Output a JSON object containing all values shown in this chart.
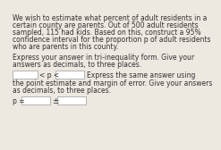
{
  "para1_lines": [
    "We wish to estimate what percent of adult residents in a",
    "certain county are parents. Out of 500 adult residents",
    "sampled, 115 had kids. Based on this, construct a 95%",
    "confidence interval for the proportion p of adult residents",
    "who are parents in this county."
  ],
  "para2_lines": [
    "Express your answer in tri-inequality form. Give your",
    "answers as decimals, to three places."
  ],
  "line3a": "Express the same answer using",
  "line3b": "the point estimate and margin of error. Give your answers",
  "line3c": "as decimals, to three places.",
  "less_than": "< p <",
  "p_eq": "p =",
  "plus_minus": "±",
  "bg_color": "#ede8e0",
  "box_color": "#ffffff",
  "box_border": "#aaaaaa",
  "text_color": "#333333",
  "font_size": 5.5
}
